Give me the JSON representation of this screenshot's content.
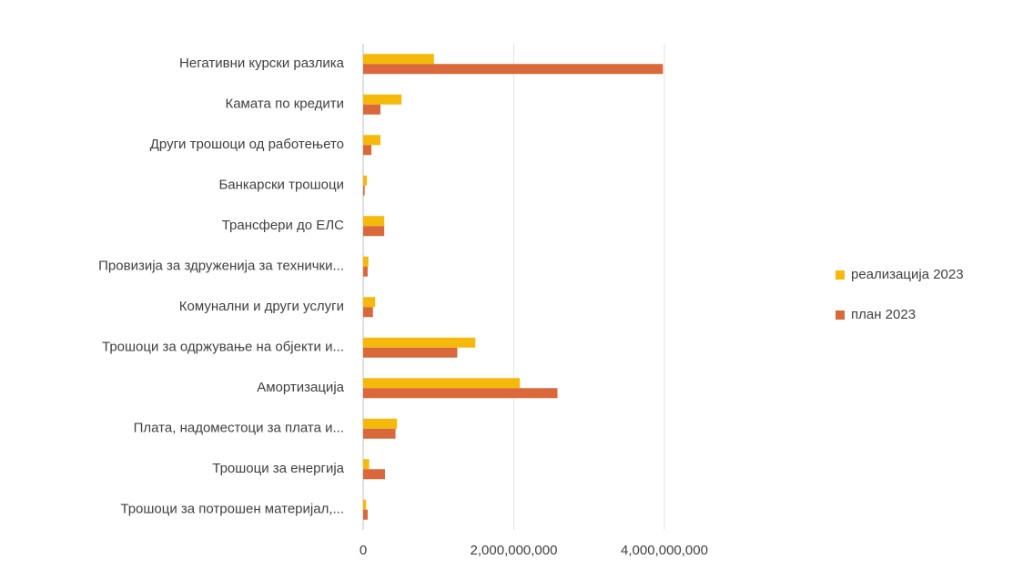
{
  "chart_data": {
    "type": "hbar",
    "categories": [
      "Негативни курски разлика",
      "Камата по кредити",
      "Други трошоци од работењето",
      "Банкарски трошоци",
      "Трансфери до ЕЛС",
      "Провизија за здруженија за технички...",
      "Комунални и други услуги",
      "Трошоци за одржување на објекти и...",
      "Амортизација",
      "Плата, надоместоци за плата и...",
      "Трошоци за енергија",
      "Трошоци за потрошен материјал,..."
    ],
    "series": [
      {
        "name": "реализација 2023",
        "color": "#f5b90c",
        "values": [
          940000000,
          510000000,
          230000000,
          50000000,
          280000000,
          70000000,
          160000000,
          1490000000,
          2080000000,
          450000000,
          80000000,
          40000000
        ]
      },
      {
        "name": "план 2023",
        "color": "#d9683b",
        "values": [
          3980000000,
          230000000,
          110000000,
          20000000,
          280000000,
          60000000,
          130000000,
          1250000000,
          2580000000,
          430000000,
          290000000,
          60000000
        ]
      }
    ],
    "xlim": [
      0,
      4000000000
    ],
    "xticks": [
      0,
      {
        "value": 2000000000,
        "label": "2,000,000,000"
      },
      {
        "value": 4000000000,
        "label": "4,000,000,000"
      }
    ],
    "grid": true,
    "legend": "right"
  }
}
